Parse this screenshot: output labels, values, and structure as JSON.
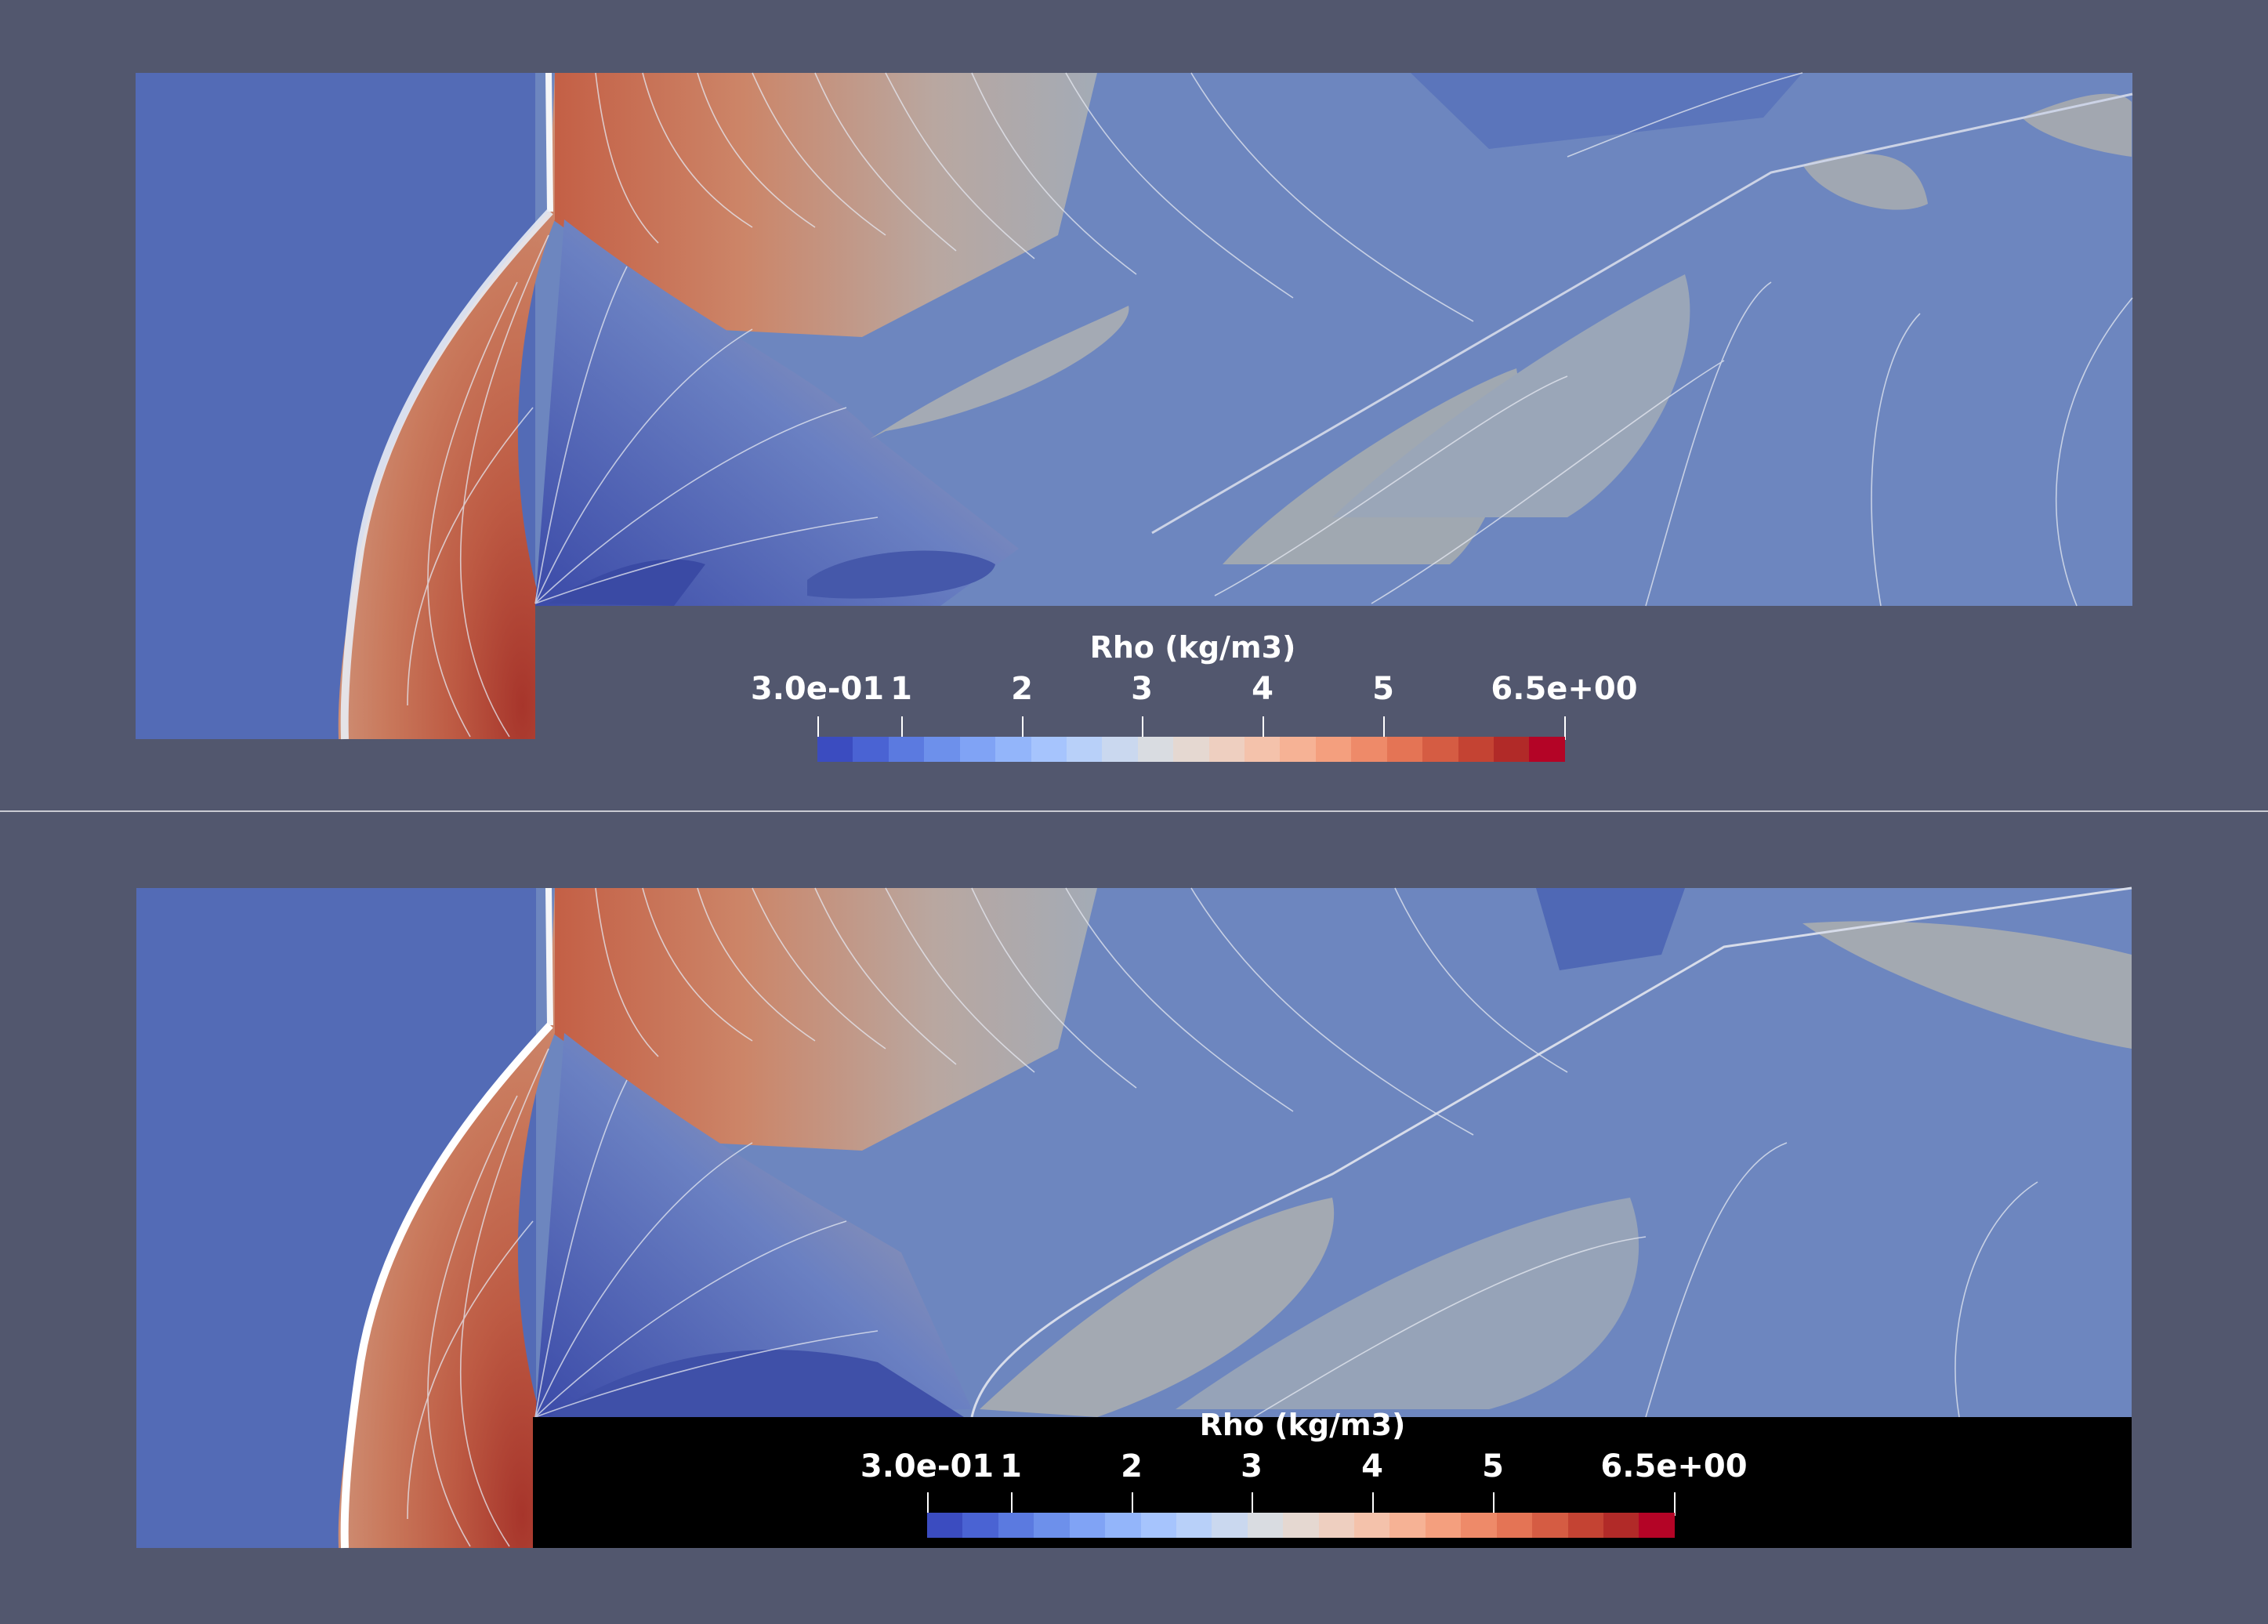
{
  "colorbar": {
    "title": "Rho (kg/m3)",
    "ticks": [
      "3.0e-01",
      "1",
      "2",
      "3",
      "4",
      "5",
      "6.5e+00"
    ],
    "tick_values": [
      0.3,
      1,
      2,
      3,
      4,
      5,
      6.5
    ],
    "range": [
      0.3,
      6.5
    ],
    "colors": [
      "#3b4cc0",
      "#4a63d3",
      "#5b7ae0",
      "#6d90eb",
      "#80a3f5",
      "#93b5fa",
      "#a6c4fd",
      "#b8d0f9",
      "#cad8ef",
      "#d9dce1",
      "#e5d8d1",
      "#eecfc0",
      "#f4c2ab",
      "#f6b295",
      "#f49f7e",
      "#ee8a69",
      "#e47455",
      "#d55c43",
      "#c44333",
      "#b12a28",
      "#b40426"
    ]
  },
  "views": [
    {
      "name": "top",
      "legend_background": "none"
    },
    {
      "name": "bottom",
      "legend_background": "black"
    }
  ],
  "field_colors": {
    "background": "#52576e",
    "freestream": "#536bb6",
    "postshock_hot": "#c7654a",
    "peak": "#a8372c",
    "expansion": "#4457a9",
    "mid": "#8a9ac0",
    "gray": "#a1a8b0"
  }
}
